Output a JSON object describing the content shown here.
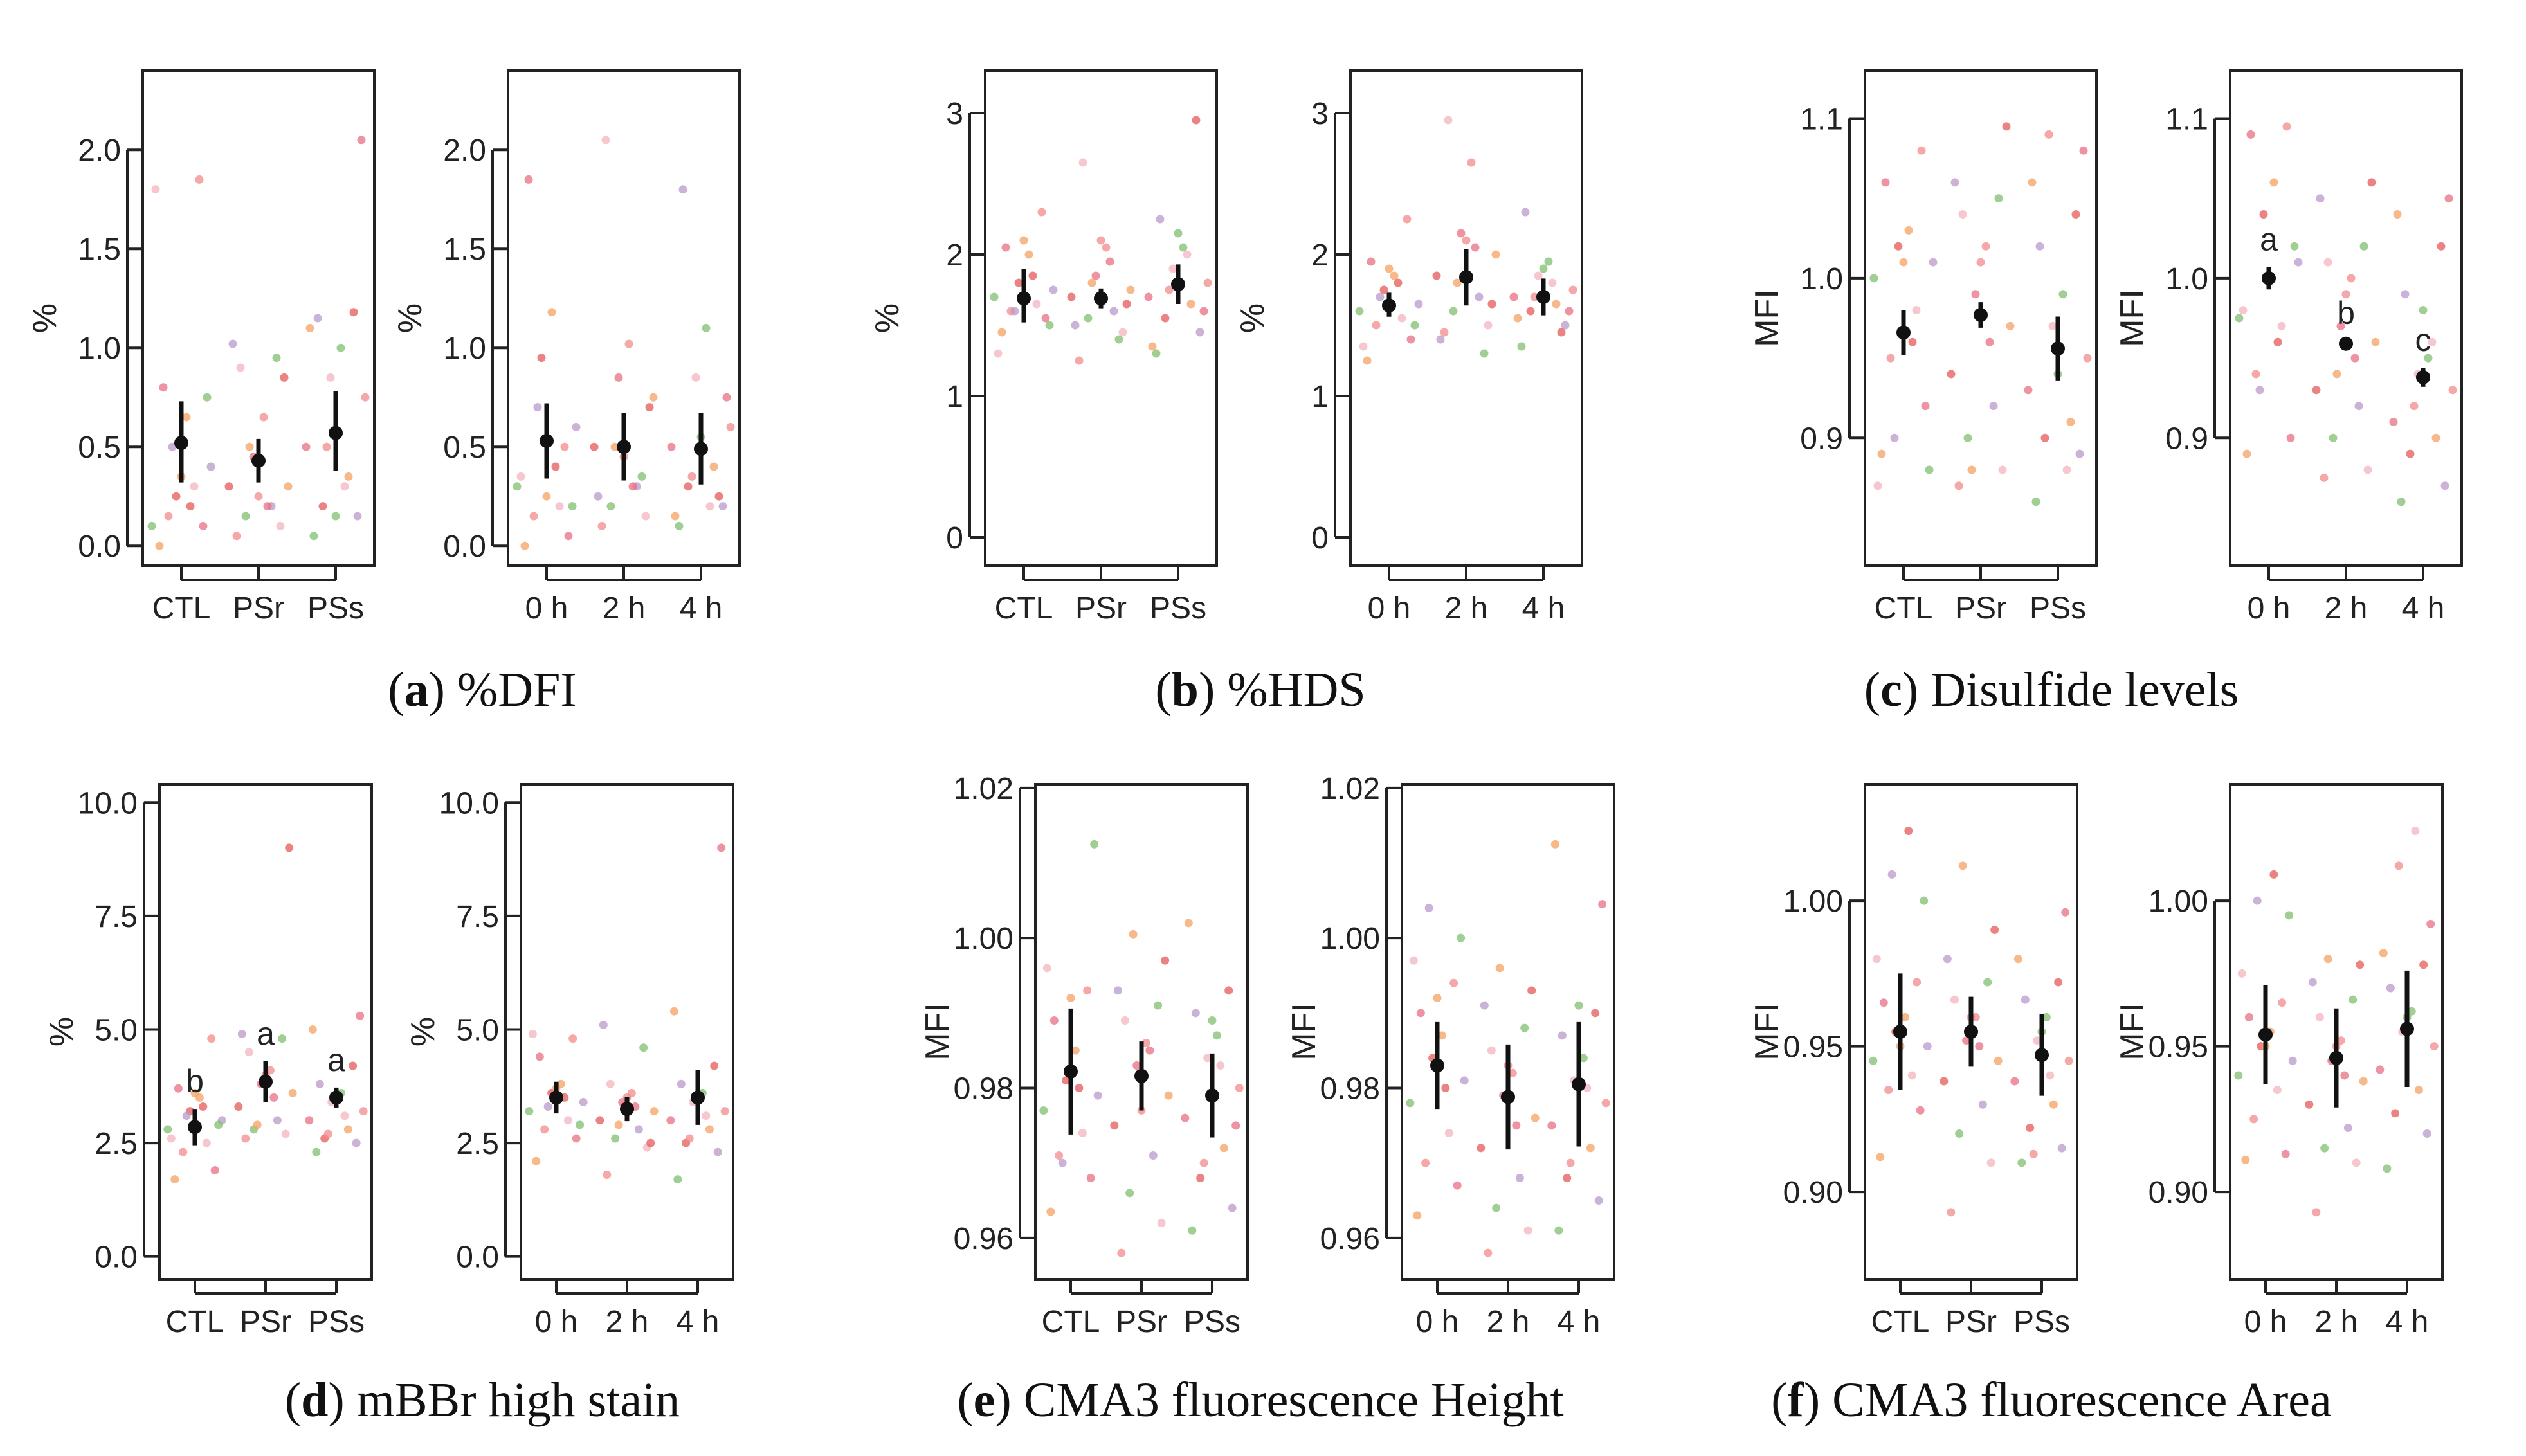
{
  "chart_data": [
    {
      "id": "a1",
      "type": "scatter",
      "ylabel": "%",
      "ylim": [
        -0.1,
        2.4
      ],
      "yticks": [
        0.0,
        0.5,
        1.0,
        1.5,
        2.0
      ],
      "ytick_labels": [
        "0.0",
        "0.5",
        "1.0",
        "1.5",
        "2.0"
      ],
      "categories": [
        "CTL",
        "PSr",
        "PSs"
      ],
      "summary": [
        {
          "mean": 0.52,
          "low": 0.32,
          "high": 0.73
        },
        {
          "mean": 0.43,
          "low": 0.32,
          "high": 0.54
        },
        {
          "mean": 0.57,
          "low": 0.38,
          "high": 0.78
        }
      ],
      "letters": [
        "",
        "",
        ""
      ],
      "points": [
        [
          0.0,
          0.1,
          0.15,
          0.3,
          0.1,
          0.4,
          0.25,
          0.65,
          0.8,
          1.85,
          1.8,
          0.75,
          0.5,
          0.2,
          0.35
        ],
        [
          0.05,
          0.1,
          0.15,
          0.2,
          0.3,
          0.3,
          0.45,
          0.65,
          0.9,
          0.95,
          1.02,
          0.85,
          0.5,
          0.2,
          0.25
        ],
        [
          0.05,
          0.15,
          0.2,
          0.35,
          0.5,
          0.75,
          0.85,
          1.0,
          1.15,
          1.18,
          1.1,
          2.05,
          0.5,
          0.3,
          0.15
        ]
      ]
    },
    {
      "id": "a2",
      "type": "scatter",
      "ylabel": "%",
      "ylim": [
        -0.1,
        2.4
      ],
      "yticks": [
        0.0,
        0.5,
        1.0,
        1.5,
        2.0
      ],
      "ytick_labels": [
        "0.0",
        "0.5",
        "1.0",
        "1.5",
        "2.0"
      ],
      "categories": [
        "0 h",
        "2 h",
        "4 h"
      ],
      "summary": [
        {
          "mean": 0.53,
          "low": 0.34,
          "high": 0.72
        },
        {
          "mean": 0.5,
          "low": 0.33,
          "high": 0.67
        },
        {
          "mean": 0.49,
          "low": 0.31,
          "high": 0.67
        }
      ],
      "letters": [
        "",
        "",
        ""
      ],
      "points": [
        [
          0.0,
          0.05,
          0.15,
          0.2,
          0.3,
          0.6,
          0.95,
          1.18,
          1.85,
          0.5,
          0.35,
          0.2,
          0.7,
          0.4,
          0.25
        ],
        [
          0.1,
          0.15,
          0.2,
          0.3,
          0.5,
          0.75,
          0.85,
          1.02,
          2.05,
          0.35,
          0.25,
          0.7,
          0.5,
          0.3,
          0.45
        ],
        [
          0.1,
          0.2,
          0.3,
          0.4,
          0.5,
          0.6,
          0.85,
          1.1,
          1.8,
          0.25,
          0.15,
          0.75,
          0.35,
          0.2,
          0.55
        ]
      ]
    },
    {
      "id": "b1",
      "type": "scatter",
      "ylabel": "%",
      "ylim": [
        -0.2,
        3.3
      ],
      "yticks": [
        0,
        1,
        2,
        3
      ],
      "ytick_labels": [
        "0",
        "1",
        "2",
        "3"
      ],
      "categories": [
        "CTL",
        "PSr",
        "PSs"
      ],
      "summary": [
        {
          "mean": 1.69,
          "low": 1.52,
          "high": 1.9
        },
        {
          "mean": 1.69,
          "low": 1.62,
          "high": 1.76
        },
        {
          "mean": 1.79,
          "low": 1.65,
          "high": 1.93
        }
      ],
      "letters": [
        "",
        "",
        ""
      ],
      "points": [
        [
          1.45,
          1.55,
          1.6,
          1.65,
          1.7,
          1.75,
          1.8,
          2.0,
          2.05,
          2.3,
          1.3,
          1.5,
          1.6,
          1.85,
          2.1
        ],
        [
          1.25,
          1.45,
          1.55,
          1.6,
          1.7,
          1.75,
          1.85,
          2.05,
          2.65,
          1.4,
          1.5,
          1.65,
          1.8,
          1.95,
          2.1
        ],
        [
          1.3,
          1.45,
          1.55,
          1.65,
          1.7,
          1.8,
          1.9,
          2.05,
          2.25,
          2.95,
          1.35,
          1.6,
          1.75,
          2.0,
          2.15
        ]
      ]
    },
    {
      "id": "b2",
      "type": "scatter",
      "ylabel": "%",
      "ylim": [
        -0.2,
        3.3
      ],
      "yticks": [
        0,
        1,
        2,
        3
      ],
      "ytick_labels": [
        "0",
        "1",
        "2",
        "3"
      ],
      "categories": [
        "0 h",
        "2 h",
        "4 h"
      ],
      "summary": [
        {
          "mean": 1.64,
          "low": 1.56,
          "high": 1.73
        },
        {
          "mean": 1.84,
          "low": 1.64,
          "high": 2.04
        },
        {
          "mean": 1.7,
          "low": 1.57,
          "high": 1.83
        }
      ],
      "letters": [
        "",
        "",
        ""
      ],
      "points": [
        [
          1.25,
          1.4,
          1.5,
          1.55,
          1.6,
          1.65,
          1.75,
          1.85,
          1.95,
          2.25,
          1.35,
          1.5,
          1.7,
          1.8,
          1.9
        ],
        [
          1.45,
          1.5,
          1.6,
          1.7,
          1.85,
          2.0,
          2.15,
          2.65,
          2.95,
          1.3,
          1.4,
          1.65,
          1.8,
          2.05,
          2.1
        ],
        [
          1.35,
          1.5,
          1.6,
          1.65,
          1.7,
          1.75,
          1.85,
          1.95,
          2.3,
          1.45,
          1.55,
          1.6,
          1.7,
          1.8,
          1.9
        ]
      ]
    },
    {
      "id": "c1",
      "type": "scatter",
      "ylabel": "MFI",
      "ylim": [
        0.82,
        1.13
      ],
      "yticks": [
        0.9,
        1.0,
        1.1
      ],
      "ytick_labels": [
        "0.9",
        "1.0",
        "1.1"
      ],
      "categories": [
        "CTL",
        "PSr",
        "PSs"
      ],
      "summary": [
        {
          "mean": 0.966,
          "low": 0.952,
          "high": 0.98
        },
        {
          "mean": 0.977,
          "low": 0.969,
          "high": 0.985
        },
        {
          "mean": 0.956,
          "low": 0.936,
          "high": 0.976
        }
      ],
      "letters": [
        "",
        "",
        ""
      ],
      "points": [
        [
          0.89,
          0.92,
          0.95,
          0.98,
          1.0,
          1.01,
          1.02,
          1.03,
          1.06,
          1.08,
          0.87,
          0.88,
          0.9,
          0.96,
          1.01
        ],
        [
          0.87,
          0.88,
          0.9,
          0.92,
          0.94,
          0.97,
          0.99,
          1.02,
          1.04,
          1.05,
          1.06,
          1.095,
          0.88,
          0.96,
          1.01
        ],
        [
          0.86,
          0.89,
          0.9,
          0.91,
          0.93,
          0.95,
          0.97,
          0.99,
          1.02,
          1.04,
          1.06,
          1.08,
          1.09,
          0.88,
          0.94
        ]
      ]
    },
    {
      "id": "c2",
      "type": "scatter",
      "ylabel": "MFI",
      "ylim": [
        0.82,
        1.13
      ],
      "yticks": [
        0.9,
        1.0,
        1.1
      ],
      "ytick_labels": [
        "0.9",
        "1.0",
        "1.1"
      ],
      "categories": [
        "0 h",
        "2 h",
        "4 h"
      ],
      "summary": [
        {
          "mean": 1.0,
          "low": 0.993,
          "high": 1.007
        },
        {
          "mean": 0.959,
          "low": 0.957,
          "high": 0.961
        },
        {
          "mean": 0.938,
          "low": 0.932,
          "high": 0.944
        }
      ],
      "letters": [
        "a",
        "b",
        "c"
      ],
      "points": [
        [
          0.89,
          0.9,
          0.94,
          0.97,
          0.975,
          1.01,
          1.04,
          1.06,
          1.09,
          1.095,
          0.98,
          1.02,
          0.93,
          0.96,
          1.0
        ],
        [
          0.875,
          0.88,
          0.9,
          0.92,
          0.93,
          0.96,
          0.97,
          1.0,
          1.01,
          1.02,
          1.05,
          1.06,
          0.94,
          0.95,
          0.99
        ],
        [
          0.86,
          0.87,
          0.89,
          0.9,
          0.91,
          0.93,
          0.94,
          0.95,
          0.99,
          1.02,
          1.04,
          1.05,
          0.92,
          0.96,
          0.98
        ]
      ]
    },
    {
      "id": "d1",
      "type": "scatter",
      "ylabel": "%",
      "ylim": [
        -0.5,
        10.4
      ],
      "yticks": [
        0.0,
        2.5,
        5.0,
        7.5,
        10.0
      ],
      "ytick_labels": [
        "0.0",
        "2.5",
        "5.0",
        "7.5",
        "10.0"
      ],
      "categories": [
        "CTL",
        "PSr",
        "PSs"
      ],
      "summary": [
        {
          "mean": 2.85,
          "low": 2.45,
          "high": 3.25
        },
        {
          "mean": 3.85,
          "low": 3.4,
          "high": 4.3
        },
        {
          "mean": 3.5,
          "low": 3.28,
          "high": 3.72
        }
      ],
      "letters": [
        "b",
        "a",
        "a"
      ],
      "points": [
        [
          1.7,
          1.9,
          2.3,
          2.5,
          2.8,
          3.0,
          3.2,
          3.5,
          3.7,
          4.8,
          2.6,
          2.9,
          3.1,
          3.3,
          3.6
        ],
        [
          2.6,
          2.7,
          2.8,
          3.0,
          3.3,
          3.6,
          3.8,
          4.1,
          4.5,
          4.8,
          4.9,
          9.0,
          2.9,
          3.5,
          4.0
        ],
        [
          2.3,
          2.5,
          2.6,
          2.8,
          3.0,
          3.2,
          3.4,
          3.6,
          3.8,
          4.2,
          5.0,
          5.3,
          2.7,
          3.1,
          3.5
        ]
      ]
    },
    {
      "id": "d2",
      "type": "scatter",
      "ylabel": "%",
      "ylim": [
        -0.5,
        10.4
      ],
      "yticks": [
        0.0,
        2.5,
        5.0,
        7.5,
        10.0
      ],
      "ytick_labels": [
        "0.0",
        "2.5",
        "5.0",
        "7.5",
        "10.0"
      ],
      "categories": [
        "0 h",
        "2 h",
        "4 h"
      ],
      "summary": [
        {
          "mean": 3.5,
          "low": 3.15,
          "high": 3.85
        },
        {
          "mean": 3.25,
          "low": 2.98,
          "high": 3.52
        },
        {
          "mean": 3.5,
          "low": 2.9,
          "high": 4.1
        }
      ],
      "letters": [
        "",
        "",
        ""
      ],
      "points": [
        [
          2.1,
          2.6,
          2.8,
          3.0,
          3.2,
          3.4,
          3.6,
          3.8,
          4.4,
          4.8,
          4.9,
          2.9,
          3.3,
          3.5,
          3.7
        ],
        [
          1.8,
          2.4,
          2.6,
          2.8,
          3.0,
          3.2,
          3.4,
          3.6,
          3.8,
          4.6,
          5.1,
          2.5,
          2.9,
          3.3,
          3.5
        ],
        [
          1.7,
          2.3,
          2.5,
          2.8,
          3.0,
          3.2,
          3.4,
          3.6,
          3.8,
          4.2,
          5.4,
          9.0,
          2.6,
          3.1,
          3.5
        ]
      ]
    },
    {
      "id": "e1",
      "type": "scatter",
      "ylabel": "MFI",
      "ylim": [
        0.9545,
        1.0205
      ],
      "yticks": [
        0.96,
        0.98,
        1.0,
        1.02
      ],
      "ytick_labels": [
        "0.96",
        "0.98",
        "1.00",
        "1.02"
      ],
      "categories": [
        "CTL",
        "PSr",
        "PSs"
      ],
      "summary": [
        {
          "mean": 0.9822,
          "low": 0.9738,
          "high": 0.9906
        },
        {
          "mean": 0.9816,
          "low": 0.977,
          "high": 0.9862
        },
        {
          "mean": 0.979,
          "low": 0.9734,
          "high": 0.9846
        }
      ],
      "letters": [
        "",
        "",
        ""
      ],
      "points": [
        [
          0.9635,
          0.968,
          0.971,
          0.974,
          0.977,
          0.979,
          0.981,
          0.985,
          0.989,
          0.993,
          0.996,
          1.0125,
          0.97,
          0.98,
          0.992
        ],
        [
          0.958,
          0.962,
          0.966,
          0.971,
          0.975,
          0.979,
          0.983,
          0.986,
          0.989,
          0.991,
          0.993,
          0.997,
          1.0005,
          0.985,
          0.977
        ],
        [
          0.961,
          0.964,
          0.968,
          0.972,
          0.976,
          0.98,
          0.984,
          0.987,
          0.99,
          0.993,
          1.002,
          0.975,
          0.97,
          0.983,
          0.989
        ]
      ]
    },
    {
      "id": "e2",
      "type": "scatter",
      "ylabel": "MFI",
      "ylim": [
        0.9545,
        1.0205
      ],
      "yticks": [
        0.96,
        0.98,
        1.0,
        1.02
      ],
      "ytick_labels": [
        "0.96",
        "0.98",
        "1.00",
        "1.02"
      ],
      "categories": [
        "0 h",
        "2 h",
        "4 h"
      ],
      "summary": [
        {
          "mean": 0.983,
          "low": 0.9772,
          "high": 0.9888
        },
        {
          "mean": 0.9788,
          "low": 0.9718,
          "high": 0.9858
        },
        {
          "mean": 0.9805,
          "low": 0.9722,
          "high": 0.9888
        }
      ],
      "letters": [
        "",
        "",
        ""
      ],
      "points": [
        [
          0.963,
          0.967,
          0.97,
          0.974,
          0.978,
          0.981,
          0.984,
          0.987,
          0.99,
          0.994,
          0.997,
          1.0,
          1.004,
          0.98,
          0.992
        ],
        [
          0.958,
          0.961,
          0.964,
          0.968,
          0.972,
          0.976,
          0.979,
          0.982,
          0.985,
          0.988,
          0.991,
          0.993,
          0.996,
          0.975,
          0.983
        ],
        [
          0.961,
          0.965,
          0.968,
          0.972,
          0.975,
          0.978,
          0.981,
          0.984,
          0.987,
          0.99,
          1.0125,
          1.0045,
          0.97,
          0.98,
          0.991
        ]
      ]
    },
    {
      "id": "f1",
      "type": "scatter",
      "ylabel": "MFI",
      "ylim": [
        0.87,
        1.04
      ],
      "yticks": [
        0.9,
        0.95,
        1.0
      ],
      "ytick_labels": [
        "0.90",
        "0.95",
        "1.00"
      ],
      "categories": [
        "CTL",
        "PSr",
        "PSs"
      ],
      "summary": [
        {
          "mean": 0.955,
          "low": 0.935,
          "high": 0.975
        },
        {
          "mean": 0.955,
          "low": 0.943,
          "high": 0.967
        },
        {
          "mean": 0.947,
          "low": 0.933,
          "high": 0.961
        }
      ],
      "letters": [
        "",
        "",
        ""
      ],
      "points": [
        [
          0.912,
          0.928,
          0.935,
          0.94,
          0.945,
          0.95,
          0.955,
          0.96,
          0.965,
          0.972,
          0.98,
          1.0,
          1.009,
          1.024,
          0.95
        ],
        [
          0.893,
          0.91,
          0.92,
          0.93,
          0.938,
          0.945,
          0.952,
          0.96,
          0.966,
          0.972,
          0.98,
          0.99,
          1.012,
          0.95,
          0.96
        ],
        [
          0.91,
          0.915,
          0.922,
          0.93,
          0.938,
          0.945,
          0.952,
          0.96,
          0.966,
          0.972,
          0.98,
          0.996,
          0.913,
          0.94,
          0.955
        ]
      ]
    },
    {
      "id": "f2",
      "type": "scatter",
      "ylabel": "MFI",
      "ylim": [
        0.87,
        1.04
      ],
      "yticks": [
        0.9,
        0.95,
        1.0
      ],
      "ytick_labels": [
        "0.90",
        "0.95",
        "1.00"
      ],
      "categories": [
        "0 h",
        "2 h",
        "4 h"
      ],
      "summary": [
        {
          "mean": 0.954,
          "low": 0.937,
          "high": 0.971
        },
        {
          "mean": 0.946,
          "low": 0.929,
          "high": 0.963
        },
        {
          "mean": 0.956,
          "low": 0.936,
          "high": 0.976
        }
      ],
      "letters": [
        "",
        "",
        ""
      ],
      "points": [
        [
          0.911,
          0.913,
          0.925,
          0.935,
          0.94,
          0.945,
          0.95,
          0.955,
          0.96,
          0.965,
          0.975,
          0.995,
          1.0,
          1.009,
          0.95
        ],
        [
          0.893,
          0.91,
          0.915,
          0.922,
          0.93,
          0.938,
          0.945,
          0.952,
          0.96,
          0.966,
          0.972,
          0.978,
          0.98,
          0.94,
          0.95
        ],
        [
          0.908,
          0.92,
          0.927,
          0.935,
          0.942,
          0.95,
          0.955,
          0.962,
          0.97,
          0.978,
          0.982,
          0.992,
          1.012,
          1.024,
          0.96
        ]
      ]
    }
  ],
  "captions": [
    {
      "letter": "a",
      "text": " %DFI"
    },
    {
      "letter": "b",
      "text": " %HDS"
    },
    {
      "letter": "c",
      "text": " Disulfide levels"
    },
    {
      "letter": "d",
      "text": " mBBr high stain"
    },
    {
      "letter": "e",
      "text": " CMA3 fluorescence Height"
    },
    {
      "letter": "f",
      "text": " CMA3 fluorescence Area"
    }
  ],
  "colors": {
    "point_palette": [
      "#f4a261",
      "#e76f81",
      "#f28b8b",
      "#f4b4c0",
      "#7fbf6e",
      "#b89ac8",
      "#e55a5a"
    ],
    "summary": "#111111",
    "frame": "#222222"
  }
}
